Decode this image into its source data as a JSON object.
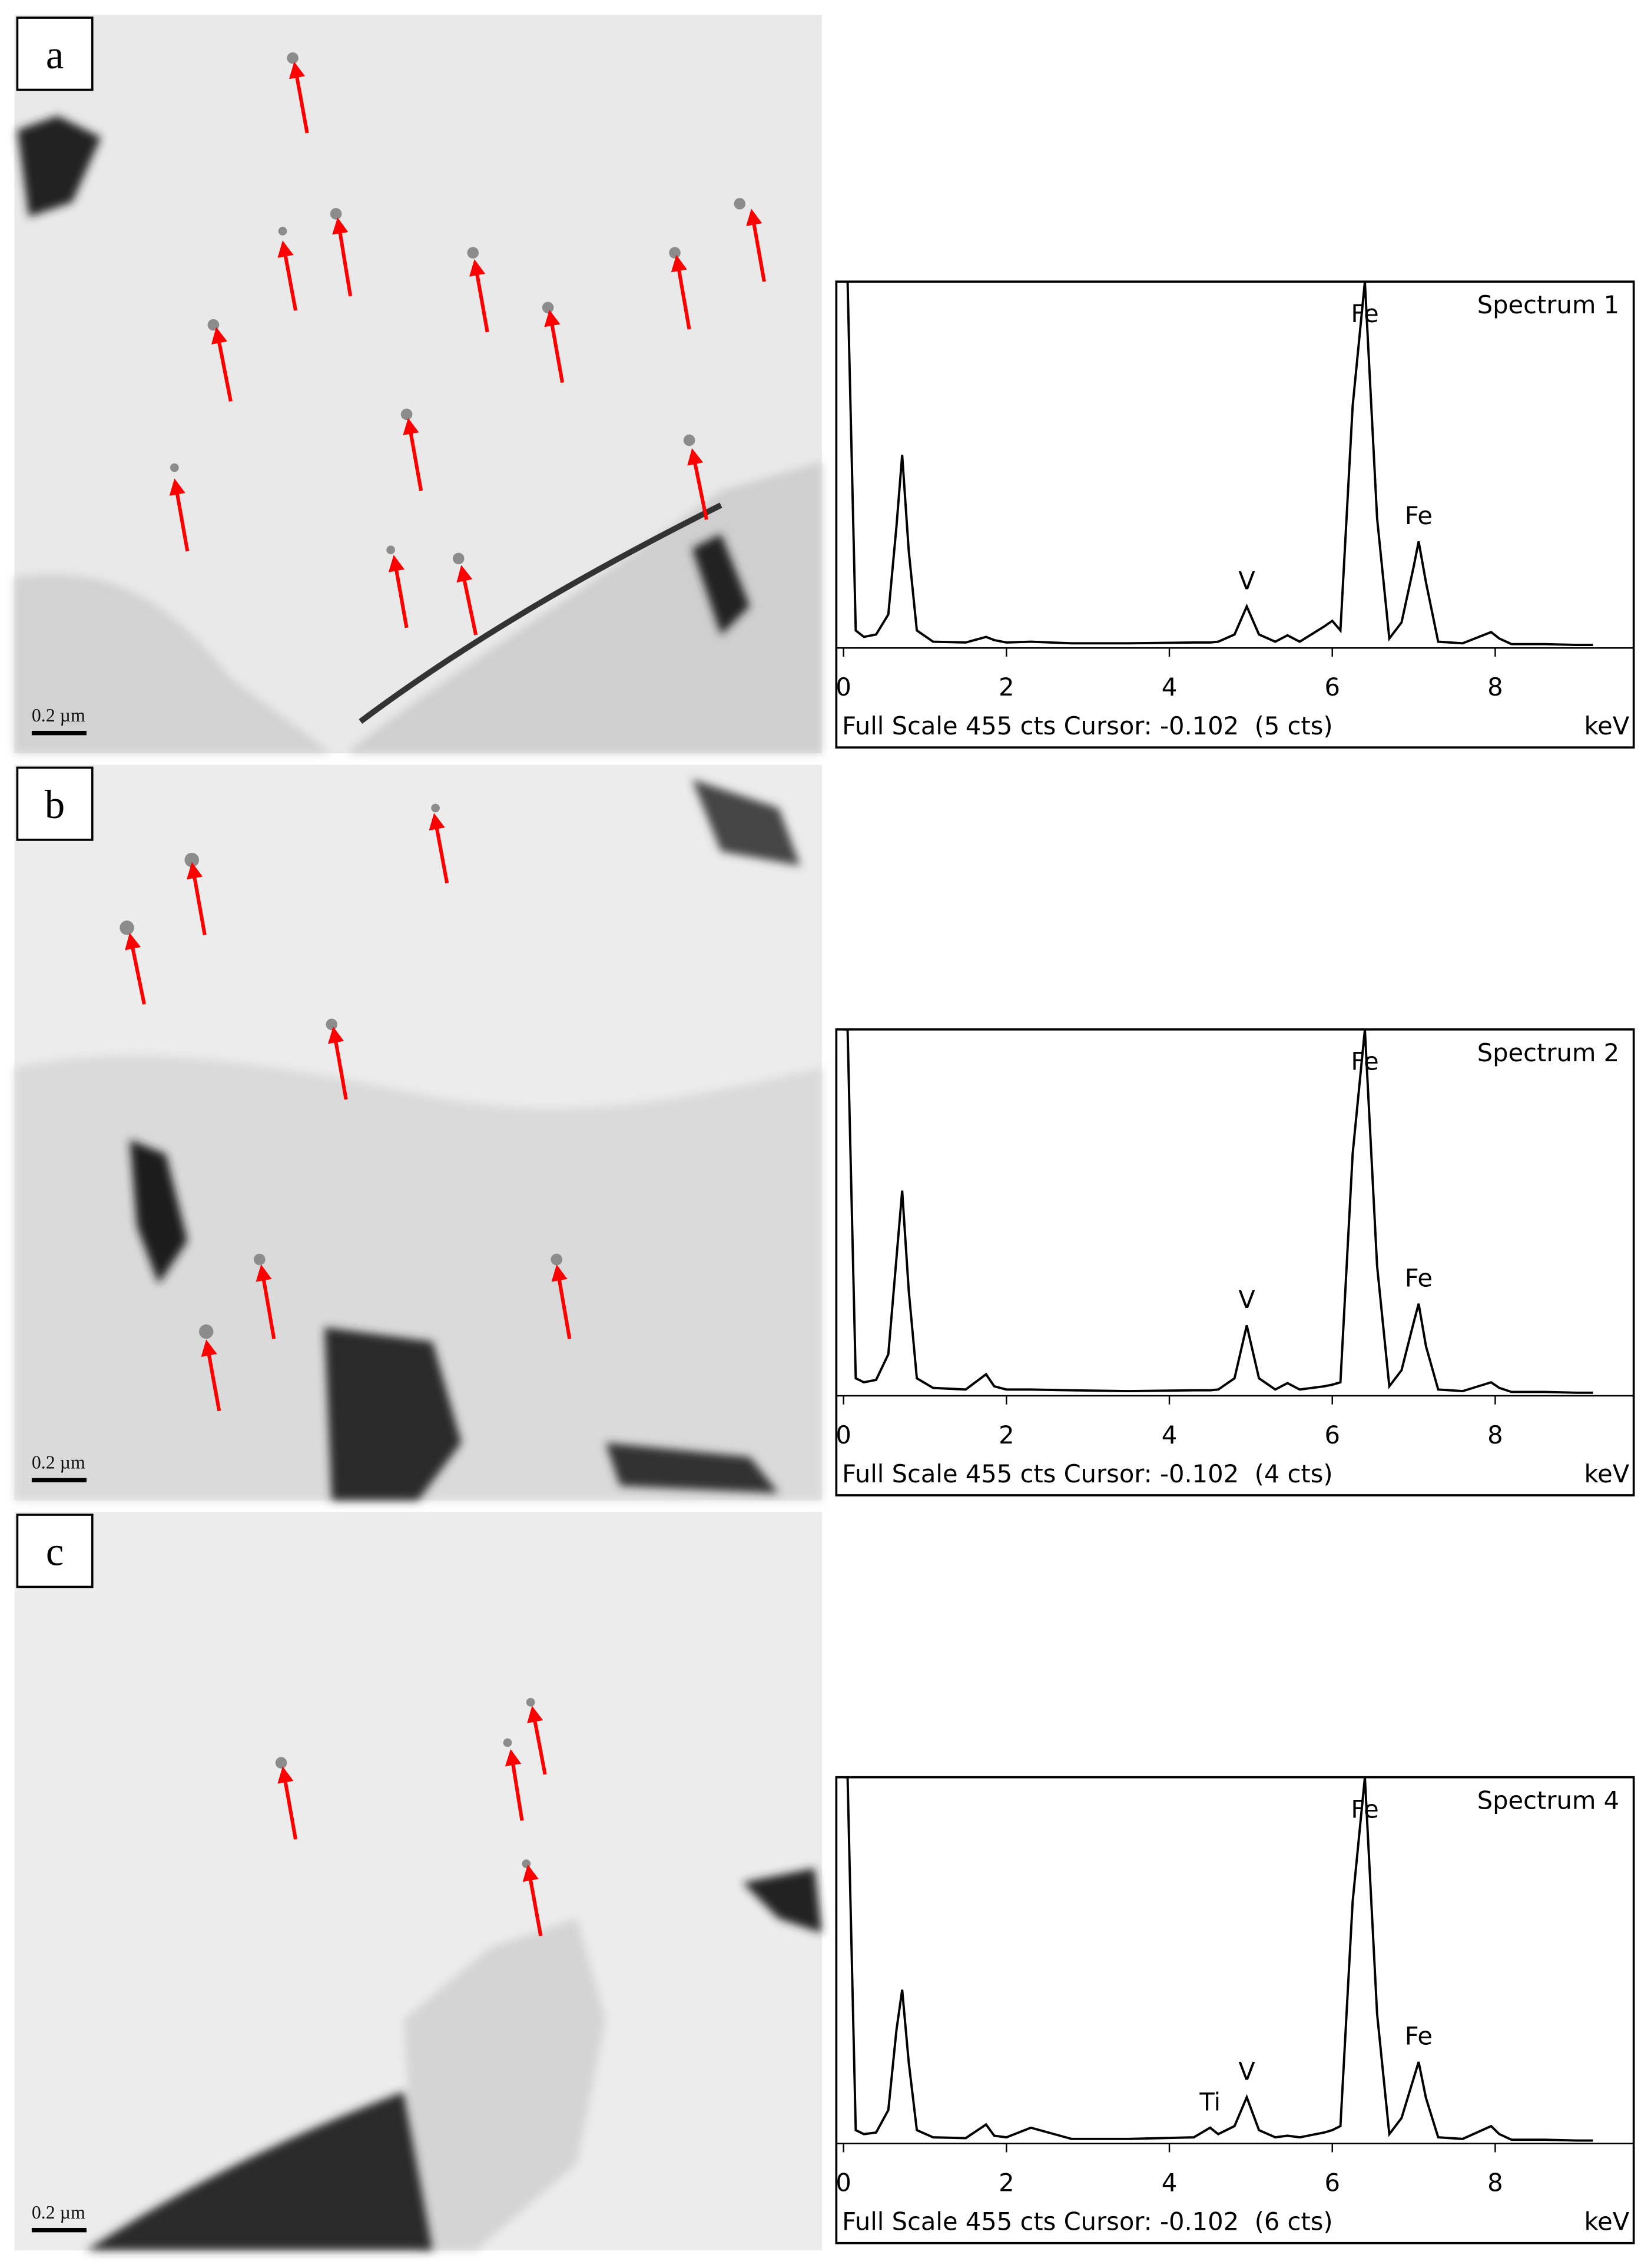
{
  "panels": [
    {
      "label": "a",
      "scale_bar": "0.2 µm"
    },
    {
      "label": "b",
      "scale_bar": "0.2 µm"
    },
    {
      "label": "c",
      "scale_bar": "0.2 µm"
    }
  ],
  "chart_data": [
    {
      "type": "line",
      "title": "Spectrum 1",
      "xlabel": "keV",
      "footer": "Full Scale 455 cts Cursor: -0.102  (5 cts)",
      "xlim": [
        0,
        9.7
      ],
      "ylim": [
        0,
        455
      ],
      "xticks": [
        0,
        2,
        4,
        6,
        8
      ],
      "color": "#000000",
      "x": [
        0,
        0.05,
        0.15,
        0.25,
        0.4,
        0.55,
        0.65,
        0.72,
        0.8,
        0.9,
        1.1,
        1.5,
        1.75,
        1.85,
        2.0,
        2.3,
        2.8,
        3.5,
        4.3,
        4.5,
        4.6,
        4.8,
        4.95,
        5.1,
        5.3,
        5.45,
        5.6,
        5.9,
        6.0,
        6.1,
        6.25,
        6.4,
        6.55,
        6.7,
        6.85,
        7.0,
        7.06,
        7.15,
        7.3,
        7.6,
        7.95,
        8.05,
        8.2,
        8.6,
        9.0,
        9.2
      ],
      "values": [
        455,
        455,
        20,
        12,
        15,
        40,
        150,
        239,
        120,
        20,
        6,
        5,
        12,
        8,
        5,
        6,
        4,
        4,
        5,
        5,
        6,
        15,
        50,
        15,
        6,
        14,
        6,
        25,
        32,
        20,
        300,
        455,
        160,
        10,
        30,
        100,
        131,
        80,
        6,
        4,
        18,
        10,
        3,
        3,
        2,
        2
      ],
      "annotations": [
        {
          "text": "Fe",
          "x": 6.4
        },
        {
          "text": "Fe",
          "x": 7.06
        },
        {
          "text": "V",
          "x": 4.95
        }
      ]
    },
    {
      "type": "line",
      "title": "Spectrum 2",
      "xlabel": "keV",
      "footer": "Full Scale 455 cts Cursor: -0.102  (4 cts)",
      "xlim": [
        0,
        9.7
      ],
      "ylim": [
        0,
        455
      ],
      "xticks": [
        0,
        2,
        4,
        6,
        8
      ],
      "color": "#000000",
      "x": [
        0,
        0.05,
        0.15,
        0.25,
        0.4,
        0.55,
        0.65,
        0.72,
        0.8,
        0.9,
        1.1,
        1.5,
        1.75,
        1.85,
        2.0,
        2.3,
        2.8,
        3.5,
        4.3,
        4.5,
        4.6,
        4.8,
        4.95,
        5.1,
        5.3,
        5.45,
        5.6,
        5.9,
        6.0,
        6.1,
        6.25,
        6.4,
        6.55,
        6.7,
        6.85,
        7.0,
        7.06,
        7.15,
        7.3,
        7.6,
        7.95,
        8.05,
        8.2,
        8.6,
        9.0,
        9.2
      ],
      "values": [
        455,
        455,
        20,
        15,
        18,
        50,
        170,
        254,
        130,
        20,
        8,
        6,
        25,
        10,
        6,
        6,
        5,
        4,
        5,
        5,
        6,
        20,
        86,
        20,
        6,
        14,
        6,
        10,
        12,
        15,
        300,
        455,
        160,
        10,
        30,
        90,
        113,
        60,
        6,
        4,
        15,
        8,
        3,
        3,
        2,
        2
      ],
      "annotations": [
        {
          "text": "Fe",
          "x": 6.4
        },
        {
          "text": "Fe",
          "x": 7.06
        },
        {
          "text": "V",
          "x": 4.95
        }
      ]
    },
    {
      "type": "line",
      "title": "Spectrum 4",
      "xlabel": "keV",
      "footer": "Full Scale 455 cts Cursor: -0.102  (6 cts)",
      "xlim": [
        0,
        9.7
      ],
      "ylim": [
        0,
        455
      ],
      "xticks": [
        0,
        2,
        4,
        6,
        8
      ],
      "color": "#000000",
      "x": [
        0,
        0.05,
        0.15,
        0.25,
        0.4,
        0.55,
        0.65,
        0.72,
        0.8,
        0.9,
        1.1,
        1.5,
        1.75,
        1.85,
        2.0,
        2.3,
        2.8,
        3.5,
        4.3,
        4.5,
        4.6,
        4.8,
        4.95,
        5.1,
        5.3,
        5.45,
        5.6,
        5.9,
        6.0,
        6.1,
        6.25,
        6.4,
        6.55,
        6.7,
        6.85,
        7.0,
        7.06,
        7.15,
        7.3,
        7.6,
        7.95,
        8.05,
        8.2,
        8.6,
        9.0,
        9.2
      ],
      "values": [
        455,
        455,
        15,
        10,
        12,
        40,
        140,
        190,
        100,
        15,
        6,
        5,
        22,
        8,
        6,
        18,
        4,
        4,
        6,
        18,
        10,
        20,
        56,
        15,
        6,
        8,
        6,
        12,
        15,
        20,
        300,
        455,
        160,
        10,
        30,
        80,
        100,
        55,
        6,
        4,
        20,
        10,
        3,
        3,
        2,
        2
      ],
      "annotations": [
        {
          "text": "Fe",
          "x": 6.4
        },
        {
          "text": "Fe",
          "x": 7.06
        },
        {
          "text": "V",
          "x": 4.95
        },
        {
          "text": "Ti",
          "x": 4.5
        }
      ]
    }
  ]
}
